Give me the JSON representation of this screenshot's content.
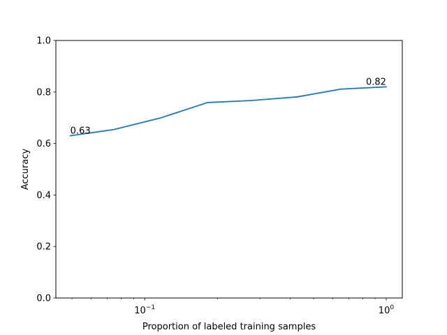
{
  "chart_data": {
    "type": "line",
    "xlabel": "Proportion of labeled training samples",
    "ylabel": "Accuracy",
    "xscale": "log",
    "xlim": [
      0.04287,
      1.166
    ],
    "ylim": [
      0,
      1
    ],
    "grid": false,
    "series": [
      {
        "color": "#1f77b4",
        "x": [
          0.0492,
          0.0745,
          0.117,
          0.182,
          0.278,
          0.428,
          0.648,
          1.0
        ],
        "y": [
          0.63,
          0.654,
          0.7,
          0.759,
          0.767,
          0.781,
          0.811,
          0.82
        ]
      }
    ],
    "y_ticks": [
      {
        "value": 0.0,
        "label": "0.0"
      },
      {
        "value": 0.2,
        "label": "0.2"
      },
      {
        "value": 0.4,
        "label": "0.4"
      },
      {
        "value": 0.6,
        "label": "0.6"
      },
      {
        "value": 0.8,
        "label": "0.8"
      },
      {
        "value": 1.0,
        "label": "1.0"
      }
    ],
    "x_major_ticks": [
      {
        "value": 0.1,
        "label_base": "10",
        "label_exp": "−1"
      },
      {
        "value": 1.0,
        "label_base": "10",
        "label_exp": "0"
      }
    ],
    "x_minor_ticks": [
      0.05,
      0.06,
      0.07,
      0.08,
      0.09,
      0.2,
      0.3,
      0.4,
      0.5,
      0.6,
      0.7,
      0.8,
      0.9
    ],
    "annotations": [
      {
        "text": "0.63",
        "x": 0.0492,
        "y": 0.63,
        "align": "start"
      },
      {
        "text": "0.82",
        "x": 1.0,
        "y": 0.82,
        "align": "end"
      }
    ]
  }
}
